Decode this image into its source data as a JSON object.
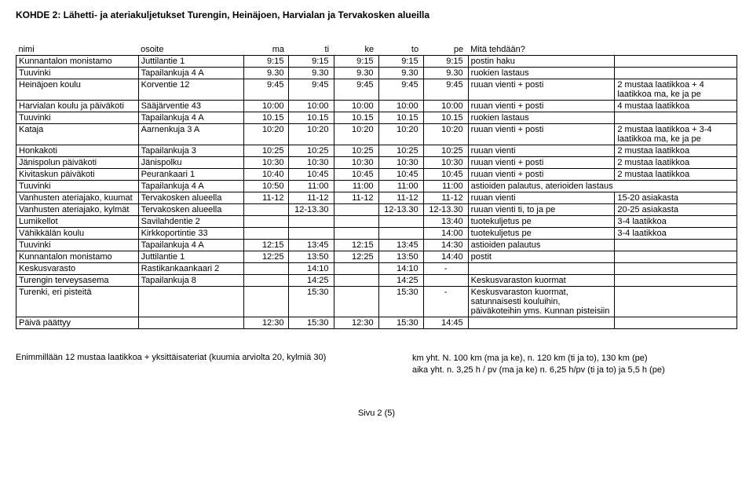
{
  "title": "KOHDE 2: Lähetti- ja ateriakuljetukset Turengin, Heinäjoen, Harvialan ja Tervakosken alueilla",
  "headers": {
    "nimi": "nimi",
    "osoite": "osoite",
    "ma": "ma",
    "ti": "ti",
    "ke": "ke",
    "to": "to",
    "pe": "pe",
    "mita": "Mitä tehdään?"
  },
  "rows": [
    {
      "b": true,
      "nimi": "Kunnantalon monistamo",
      "osoite": "Juttilantie 1",
      "ma": "9:15",
      "ti": "9:15",
      "ke": "9:15",
      "to": "9:15",
      "pe": "9:15",
      "mita": "postin haku",
      "extra": ""
    },
    {
      "b": true,
      "bold": true,
      "nimi": "Tuuvinki",
      "osoite": "Tapailankuja 4 A",
      "ma": "9.30",
      "ti": "9.30",
      "ke": "9.30",
      "to": "9.30",
      "pe": "9.30",
      "mita": "ruokien lastaus",
      "extra": ""
    },
    {
      "b": true,
      "nimi": "Heinäjoen koulu",
      "osoite": "Korventie 12",
      "ma": "9:45",
      "ti": "9:45",
      "ke": "9:45",
      "to": "9:45",
      "pe": "9:45",
      "mita": "ruuan vienti + posti",
      "extra": "2 mustaa laatikkoa + 4 laatikkoa ma, ke ja pe"
    },
    {
      "b": true,
      "nimi": "Harvialan koulu ja päiväkoti",
      "osoite": "Sääjärventie 43",
      "ma": "10:00",
      "ti": "10:00",
      "ke": "10:00",
      "to": "10:00",
      "pe": "10:00",
      "mita": "ruuan vienti + posti",
      "extra": "4 mustaa laatikkoa"
    },
    {
      "b": true,
      "bold": true,
      "nimi": "Tuuvinki",
      "osoite": "Tapailankuja 4 A",
      "ma": "10.15",
      "ti": "10.15",
      "ke": "10.15",
      "to": "10.15",
      "pe": "10.15",
      "mita": "ruokien lastaus",
      "extra": ""
    },
    {
      "b": true,
      "nimi": "Kataja",
      "osoite": "Aarnenkuja 3 A",
      "ma": "10:20",
      "ti": "10:20",
      "ke": "10:20",
      "to": "10:20",
      "pe": "10:20",
      "mita": "ruuan vienti + posti",
      "extra": "2 mustaa laatikkoa + 3-4 laatikkoa ma, ke ja pe"
    },
    {
      "b": true,
      "nimi": "Honkakoti",
      "osoite": "Tapailankuja 3",
      "ma": "10:25",
      "ti": "10:25",
      "ke": "10:25",
      "to": "10:25",
      "pe": "10:25",
      "mita": "ruuan vienti",
      "extra": "2 mustaa laatikkoa"
    },
    {
      "b": true,
      "nimi": "Jänispolun päiväkoti",
      "osoite": "Jänispolku",
      "ma": "10:30",
      "ti": "10:30",
      "ke": "10:30",
      "to": "10:30",
      "pe": "10:30",
      "mita": "ruuan vienti + posti",
      "extra": "2 mustaa laatikkoa"
    },
    {
      "b": true,
      "nimi": "Kivitaskun päiväkoti",
      "osoite": "Peurankaari 1",
      "ma": "10:40",
      "ti": "10:45",
      "ke": "10:45",
      "to": "10:45",
      "pe": "10:45",
      "mita": "ruuan vienti + posti",
      "extra": "2 mustaa laatikkoa"
    },
    {
      "b": true,
      "bold": true,
      "nimi": "Tuuvinki",
      "osoite": "Tapailankuja 4 A",
      "ma": "10:50",
      "ti": "11:00",
      "ke": "11:00",
      "to": "11:00",
      "pe": "11:00",
      "mita": "astioiden palautus, aterioiden lastaus",
      "extra": "",
      "mergeExtra": true
    },
    {
      "b": true,
      "nimi": "Vanhusten ateriajako, kuumat",
      "osoite": "Tervakosken alueella",
      "ma": "11-12",
      "ti": "11-12",
      "ke": "11-12",
      "to": "11-12",
      "pe": "11-12",
      "mita": "ruuan vienti",
      "extra": "15-20 asiakasta"
    },
    {
      "b": true,
      "nimi": "Vanhusten ateriajako, kylmät",
      "osoite": "Tervakosken alueella",
      "ma": "",
      "ti": "12-13.30",
      "ke": "",
      "to": "12-13.30",
      "pe": "12-13.30",
      "mita": "ruuan vienti ti, to ja pe",
      "extra": "20-25 asiakasta"
    },
    {
      "b": true,
      "nimi": "Lumikellot",
      "osoite": "Savilahdentie 2",
      "ma": "",
      "ti": "",
      "ke": "",
      "to": "",
      "pe": "13:40",
      "mita": "tuotekuljetus pe",
      "extra": "3-4 laatikkoa"
    },
    {
      "b": true,
      "nimi": "Vähikkälän koulu",
      "osoite": "Kirkkoportintie 33",
      "ma": "",
      "ti": "",
      "ke": "",
      "to": "",
      "pe": "14:00",
      "mita": "tuotekuljetus pe",
      "extra": "3-4 laatikkoa"
    },
    {
      "b": true,
      "bold": true,
      "nimi": "Tuuvinki",
      "osoite": "Tapailankuja 4 A",
      "ma": "12:15",
      "ti": "13:45",
      "ke": "12:15",
      "to": "13:45",
      "pe": "14:30",
      "mita": "astioiden palautus",
      "extra": ""
    },
    {
      "b": true,
      "nimi": "Kunnantalon monistamo",
      "osoite": "Juttilantie 1",
      "ma": "12:25",
      "ti": "13:50",
      "ke": "12:25",
      "to": "13:50",
      "pe": "14:40",
      "mita": "postit",
      "extra": ""
    },
    {
      "b": true,
      "nimi": "Keskusvarasto",
      "osoite": "Rastikankaankaari 2",
      "ma": "",
      "ti": "14:10",
      "ke": "",
      "to": "14:10",
      "pe": "-",
      "peCtr": true,
      "mita": "",
      "extra": ""
    },
    {
      "b": true,
      "nimi": "Turengin terveysasema",
      "osoite": "Tapailankuja 8",
      "ma": "",
      "ti": "14:25",
      "ke": "",
      "to": "14:25",
      "pe": "",
      "mita": "Keskusvaraston kuormat",
      "extra": ""
    },
    {
      "b": true,
      "nimi": "Turenki, eri pisteitä",
      "osoite": "",
      "ma": "",
      "ti": "15:30",
      "ke": "",
      "to": "15:30",
      "pe": "-",
      "peCtr": true,
      "mita": "Keskusvaraston kuormat, satunnaisesti kouluihin, päiväkoteihin yms. Kunnan pisteisiin",
      "extra": ""
    },
    {
      "b": true,
      "bold": true,
      "nimi": "Päivä päättyy",
      "osoite": "",
      "ma": "12:30",
      "ti": "15:30",
      "ke": "12:30",
      "to": "15:30",
      "pe": "14:45",
      "mita": "",
      "extra": ""
    }
  ],
  "afterLeft": "Enimmillään 12 mustaa laatikkoa + yksittäisateriat (kuumia arviolta 20, kylmiä 30)",
  "afterRight1": "km yht.  N. 100 km (ma ja ke), n. 120 km (ti ja to), 130 km (pe)",
  "afterRight2": "aika yht.  n. 3,25 h / pv (ma ja ke) n. 6,25 h/pv (ti ja to) ja 5,5 h (pe)",
  "footer": "Sivu 2 (5)"
}
